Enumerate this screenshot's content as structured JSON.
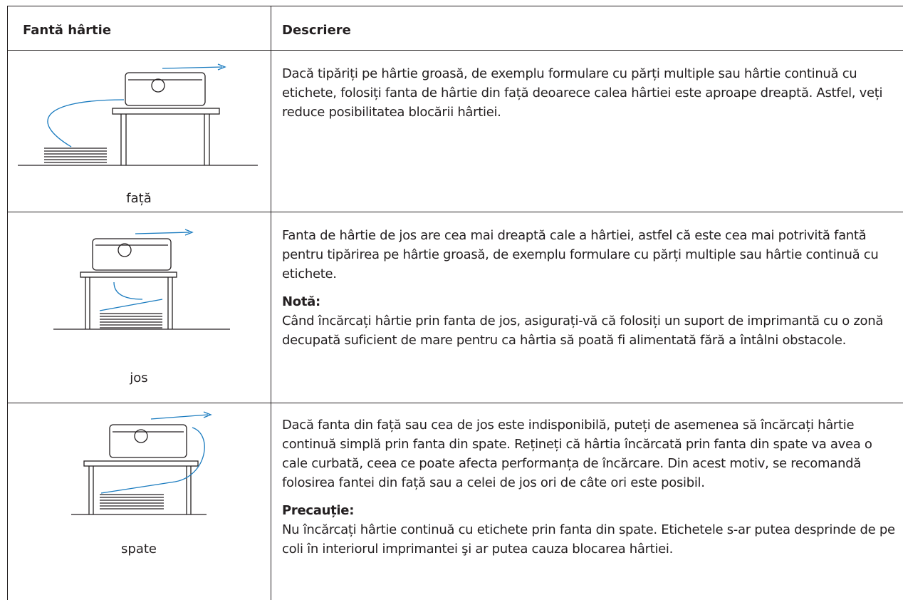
{
  "table": {
    "header": [
      "Fantă hârtie",
      "Descriere"
    ],
    "rows": [
      {
        "slot": "față",
        "description": "Dacă tipăriți pe hârtie groasă, de exemplu formulare cu părți multiple sau hârtie continuă cu etichete, folosiți fanta de hârtie din față deoarece calea hârtiei este aproape dreaptă. Astfel, veți reduce posibilitatea blocării hârtiei."
      },
      {
        "slot": "jos",
        "description": "Fanta de hârtie de jos are cea mai dreaptă cale a hârtiei, astfel că este cea mai potrivită fantă pentru tipărirea pe hârtie groasă, de exemplu formulare cu părți multiple sau hârtie continuă cu etichete.",
        "note": {
          "title": "Notă:",
          "text": "Când încărcați hârtie prin fanta de jos, asigurați-vă că folosiți un suport de imprimantă cu o zonă decupată suficient de mare pentru ca hârtia să poată fi alimentată fără a întâlni obstacole."
        }
      },
      {
        "slot": "spate",
        "description": "Dacă fanta din față sau cea de jos este indisponibilă, puteți de asemenea să încărcați hârtie continuă simplă prin fanta din spate. Rețineți că hârtia încărcată prin fanta din spate va avea o cale curbată, ceea ce poate afecta performanța de încărcare. Din acest motiv, se recomandă folosirea fantei din față sau a celei de jos ori de câte ori este posibil.",
        "note": {
          "title": "Precauție:",
          "text": "Nu încărcați hârtie continuă cu etichete prin fanta din spate. Etichetele s-ar putea desprinde de pe coli în interiorul imprimantei şi ar putea cauza blocarea hârtiei."
        }
      }
    ]
  }
}
